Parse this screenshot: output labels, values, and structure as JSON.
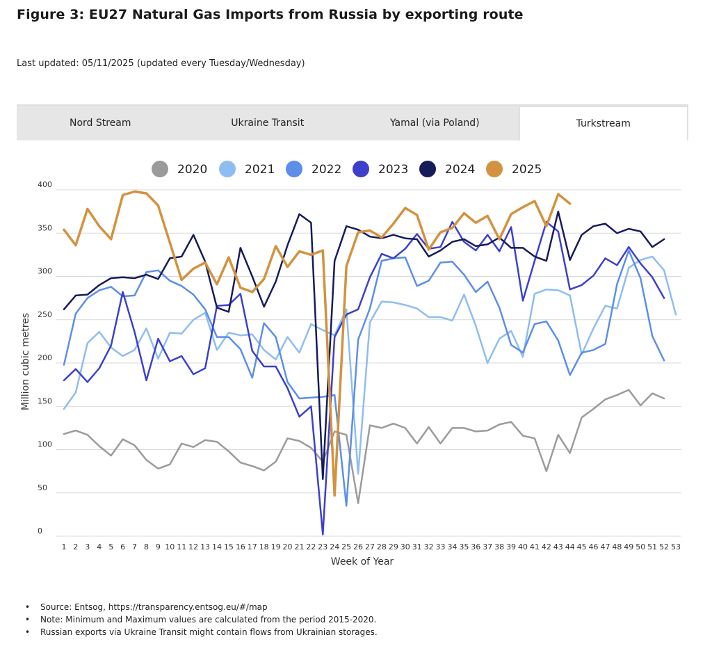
{
  "title": "Figure 3: EU27 Natural Gas Imports from Russia by exporting route",
  "last_updated": "Last updated: 05/11/2025 (updated every Tuesday/Wednesday)",
  "tabs": [
    {
      "label": "Nord Stream",
      "active": false
    },
    {
      "label": "Ukraine Transit",
      "active": false
    },
    {
      "label": "Yamal (via Poland)",
      "active": false
    },
    {
      "label": "Turkstream",
      "active": true
    }
  ],
  "notes": [
    "Source: Entsog, https://transparency.entsog.eu/#/map",
    "Note: Minimum and Maximum values are calculated from the period 2015-2020.",
    "Russian exports via Ukraine Transit might contain flows from Ukrainian storages."
  ],
  "chart_data": {
    "type": "line",
    "xlabel": "Week of Year",
    "ylabel": "Million cubic metres",
    "ylim": [
      0,
      400
    ],
    "yticks": [
      0,
      50,
      100,
      150,
      200,
      250,
      300,
      350,
      400
    ],
    "x": [
      1,
      2,
      3,
      4,
      5,
      6,
      7,
      8,
      9,
      10,
      11,
      12,
      13,
      14,
      15,
      16,
      17,
      18,
      19,
      20,
      21,
      22,
      23,
      24,
      25,
      26,
      27,
      28,
      29,
      30,
      31,
      32,
      33,
      34,
      35,
      36,
      37,
      38,
      39,
      40,
      41,
      42,
      43,
      44,
      45,
      46,
      47,
      48,
      49,
      50,
      51,
      52,
      53
    ],
    "legend_position": "top",
    "series": [
      {
        "name": "2020",
        "color": "#9b9b9b",
        "values": [
          118,
          122,
          117,
          104,
          93,
          112,
          105,
          88,
          78,
          83,
          107,
          103,
          111,
          109,
          98,
          85,
          81,
          76,
          86,
          113,
          110,
          102,
          86,
          121,
          117,
          38,
          128,
          125,
          130,
          125,
          107,
          126,
          107,
          125,
          125,
          121,
          122,
          129,
          132,
          116,
          113,
          75,
          117,
          96,
          137,
          147,
          158,
          163,
          169,
          151,
          165,
          159,
          null
        ]
      },
      {
        "name": "2021",
        "color": "#8ebdf2",
        "values": [
          147,
          166,
          223,
          236,
          218,
          208,
          215,
          240,
          205,
          235,
          234,
          250,
          258,
          215,
          235,
          232,
          233,
          215,
          204,
          230,
          212,
          245,
          238,
          232,
          262,
          72,
          247,
          271,
          270,
          267,
          263,
          253,
          253,
          249,
          279,
          243,
          200,
          228,
          237,
          207,
          280,
          285,
          284,
          278,
          210,
          240,
          266,
          263,
          310,
          319,
          323,
          307,
          256
        ]
      },
      {
        "name": "2022",
        "color": "#5b8fe8",
        "values": [
          198,
          257,
          275,
          284,
          288,
          277,
          278,
          305,
          307,
          295,
          289,
          279,
          262,
          230,
          230,
          216,
          183,
          246,
          230,
          178,
          159,
          160,
          161,
          163,
          35,
          227,
          263,
          318,
          321,
          322,
          289,
          295,
          316,
          317,
          302,
          282,
          294,
          264,
          221,
          212,
          245,
          248,
          226,
          186,
          212,
          215,
          222,
          291,
          330,
          298,
          231,
          203,
          null
        ]
      },
      {
        "name": "2023",
        "color": "#3c40cc",
        "values": [
          180,
          193,
          178,
          194,
          220,
          282,
          236,
          180,
          228,
          202,
          208,
          187,
          194,
          266,
          267,
          280,
          214,
          196,
          196,
          171,
          138,
          150,
          2,
          230,
          256,
          262,
          299,
          326,
          321,
          332,
          349,
          332,
          334,
          363,
          340,
          330,
          348,
          329,
          357,
          272,
          318,
          363,
          352,
          285,
          290,
          301,
          321,
          313,
          334,
          315,
          299,
          275,
          null
        ]
      },
      {
        "name": "2024",
        "color": "#161b5c",
        "values": [
          262,
          278,
          279,
          290,
          298,
          299,
          298,
          302,
          297,
          321,
          323,
          348,
          317,
          264,
          259,
          333,
          300,
          265,
          294,
          336,
          372,
          362,
          66,
          318,
          358,
          354,
          346,
          344,
          348,
          344,
          343,
          323,
          330,
          340,
          343,
          335,
          337,
          345,
          333,
          333,
          323,
          318,
          375,
          319,
          348,
          358,
          361,
          350,
          355,
          352,
          334,
          343,
          null
        ]
      },
      {
        "name": "2025",
        "color": "#d3923f",
        "values": [
          354,
          336,
          378,
          358,
          343,
          394,
          398,
          396,
          382,
          339,
          296,
          309,
          316,
          291,
          322,
          287,
          282,
          297,
          335,
          311,
          329,
          325,
          330,
          47,
          312,
          351,
          353,
          345,
          361,
          379,
          371,
          331,
          351,
          356,
          373,
          362,
          370,
          343,
          372,
          380,
          387,
          358,
          395,
          384,
          null,
          null,
          null,
          null,
          null,
          null,
          null,
          null,
          null
        ]
      }
    ]
  }
}
